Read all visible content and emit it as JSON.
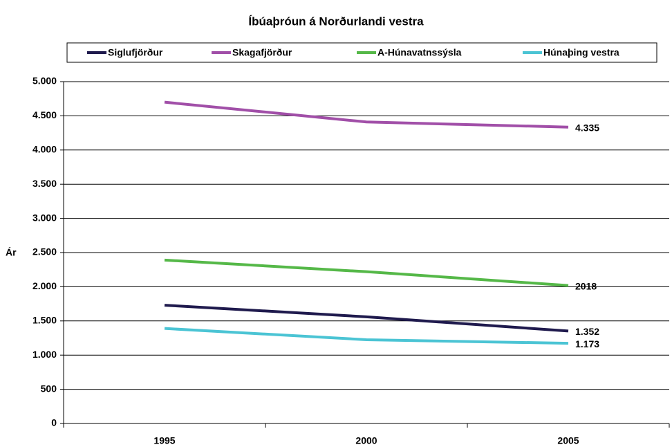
{
  "chart_data": {
    "type": "line",
    "title": "Íbúaþróun á Norðurlandi vestra",
    "y_label": "Ár",
    "categories": [
      "1995",
      "2000",
      "2005"
    ],
    "series": [
      {
        "name": "Siglufjörður",
        "color": "#1f1a4d",
        "values": [
          1730,
          1560,
          1352
        ],
        "value_labels": [
          null,
          null,
          "1.352"
        ]
      },
      {
        "name": "Skagafjörður",
        "color": "#a14fa8",
        "values": [
          4700,
          4410,
          4335
        ],
        "value_labels": [
          null,
          null,
          "4.335"
        ]
      },
      {
        "name": "A-Húnavatnssýsla",
        "color": "#55b848",
        "values": [
          2390,
          2220,
          2018
        ],
        "value_labels": [
          null,
          null,
          "2018"
        ]
      },
      {
        "name": "Húnaþing vestra",
        "color": "#4bc4d4",
        "values": [
          1390,
          1225,
          1173
        ],
        "value_labels": [
          null,
          null,
          "1.173"
        ]
      }
    ],
    "ylim": [
      0,
      5000
    ],
    "yticks": [
      0,
      500,
      {
        "value": 1000,
        "label": "1.000"
      },
      {
        "value": 1500,
        "label": "1.500"
      },
      {
        "value": 2000,
        "label": "2.000"
      },
      {
        "value": 2500,
        "label": "2.500"
      },
      {
        "value": 3000,
        "label": "3.000"
      },
      {
        "value": 3500,
        "label": "3.500"
      },
      {
        "value": 4000,
        "label": "4.000"
      },
      {
        "value": 4500,
        "label": "4.500"
      },
      {
        "value": 5000,
        "label": "5.000"
      }
    ],
    "grid": true,
    "legend": "top"
  }
}
